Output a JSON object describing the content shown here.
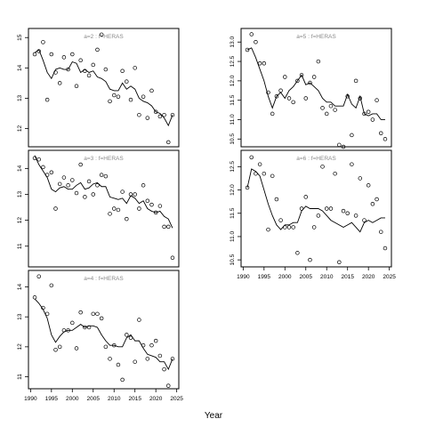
{
  "chart_data": {
    "type": "line",
    "xlabel": "Year",
    "panels": [
      {
        "label": "a=2  :  f=HERAS",
        "xlim": [
          1989.5,
          2025.5
        ],
        "ylim": [
          11.4,
          15.3
        ],
        "xticks": [],
        "yticks": [
          12,
          13,
          14,
          15
        ],
        "series": [
          {
            "kind": "points",
            "x": [
              1991,
              1992,
              1993,
              1994,
              1995,
              1996,
              1997,
              1998,
              1999,
              2000,
              2001,
              2002,
              2003,
              2004,
              2005,
              2006,
              2007,
              2008,
              2009,
              2010,
              2011,
              2012,
              2013,
              2014,
              2015,
              2016,
              2017,
              2018,
              2019,
              2020,
              2021,
              2022,
              2023,
              2024
            ],
            "y": [
              14.45,
              14.55,
              14.85,
              12.95,
              14.45,
              13.85,
              13.5,
              14.35,
              13.95,
              14.45,
              13.4,
              14.25,
              13.9,
              13.75,
              14.1,
              14.6,
              15.1,
              13.95,
              12.9,
              13.1,
              13.05,
              13.9,
              13.55,
              12.95,
              14.0,
              12.45,
              13.05,
              12.35,
              13.25,
              12.55,
              12.4,
              12.45,
              11.55,
              12.45
            ]
          },
          {
            "kind": "line",
            "x": [
              1991,
              1992,
              1993,
              1994,
              1995,
              1996,
              1997,
              1998,
              1999,
              2000,
              2001,
              2002,
              2003,
              2004,
              2005,
              2006,
              2007,
              2008,
              2009,
              2010,
              2011,
              2012,
              2013,
              2014,
              2015,
              2016,
              2017,
              2018,
              2019,
              2020,
              2021,
              2022,
              2023,
              2024
            ],
            "y": [
              14.5,
              14.6,
              14.25,
              13.85,
              13.65,
              13.95,
              14.0,
              13.95,
              13.95,
              14.2,
              14.15,
              13.85,
              13.95,
              13.85,
              13.9,
              13.7,
              13.65,
              13.55,
              13.3,
              13.25,
              13.25,
              13.5,
              13.3,
              13.4,
              13.3,
              13.0,
              12.9,
              12.85,
              12.75,
              12.55,
              12.5,
              12.35,
              12.1,
              12.45
            ]
          }
        ]
      },
      {
        "label": "a=3  :  f=HERAS",
        "xlim": [
          1989.5,
          2025.5
        ],
        "ylim": [
          10.2,
          14.7
        ],
        "xticks": [],
        "yticks": [
          11,
          12,
          13,
          14
        ],
        "series": [
          {
            "kind": "points",
            "x": [
              1991,
              1992,
              1993,
              1994,
              1995,
              1996,
              1997,
              1998,
              1999,
              2000,
              2001,
              2002,
              2003,
              2004,
              2005,
              2006,
              2007,
              2008,
              2009,
              2010,
              2011,
              2012,
              2013,
              2014,
              2015,
              2016,
              2017,
              2018,
              2019,
              2020,
              2021,
              2022,
              2023,
              2024
            ],
            "y": [
              14.4,
              14.35,
              14.05,
              13.75,
              13.85,
              12.45,
              13.4,
              13.65,
              13.35,
              13.55,
              13.05,
              14.15,
              12.9,
              13.5,
              13.0,
              13.35,
              13.75,
              13.7,
              12.25,
              12.45,
              12.4,
              13.1,
              12.05,
              13.0,
              13.0,
              12.45,
              13.35,
              12.75,
              12.6,
              12.3,
              12.55,
              11.75,
              11.75,
              10.55
            ]
          },
          {
            "kind": "line",
            "x": [
              1991,
              1992,
              1993,
              1994,
              1995,
              1996,
              1997,
              1998,
              1999,
              2000,
              2001,
              2002,
              2003,
              2004,
              2005,
              2006,
              2007,
              2008,
              2009,
              2010,
              2011,
              2012,
              2013,
              2014,
              2015,
              2016,
              2017,
              2018,
              2019,
              2020,
              2021,
              2022,
              2023,
              2024
            ],
            "y": [
              14.5,
              14.15,
              13.9,
              13.65,
              13.2,
              13.1,
              13.25,
              13.3,
              13.2,
              13.2,
              13.35,
              13.45,
              13.2,
              13.25,
              13.4,
              13.45,
              13.3,
              13.3,
              12.9,
              12.85,
              12.8,
              12.85,
              12.65,
              12.95,
              12.85,
              12.65,
              12.75,
              12.45,
              12.35,
              12.3,
              12.35,
              12.15,
              12.05,
              11.7
            ]
          }
        ]
      },
      {
        "label": "a=4  :  f=HERAS",
        "xlim": [
          1989.5,
          2025.5
        ],
        "ylim": [
          10.6,
          14.55
        ],
        "xticks": [
          1990,
          1995,
          2000,
          2005,
          2010,
          2015,
          2020,
          2025
        ],
        "yticks": [
          11,
          12,
          13,
          14
        ],
        "series": [
          {
            "kind": "points",
            "x": [
              1991,
              1992,
              1993,
              1994,
              1995,
              1996,
              1997,
              1998,
              1999,
              2000,
              2001,
              2002,
              2003,
              2004,
              2005,
              2006,
              2007,
              2008,
              2009,
              2010,
              2011,
              2012,
              2013,
              2014,
              2015,
              2016,
              2017,
              2018,
              2019,
              2020,
              2021,
              2022,
              2023,
              2024
            ],
            "y": [
              13.65,
              14.35,
              13.3,
              13.1,
              14.05,
              11.9,
              12.0,
              12.55,
              12.55,
              12.8,
              11.95,
              13.15,
              12.65,
              12.65,
              13.1,
              13.1,
              12.95,
              12.0,
              11.6,
              12.05,
              11.4,
              10.9,
              12.4,
              12.3,
              11.5,
              12.9,
              12.05,
              11.6,
              12.05,
              12.2,
              11.7,
              11.25,
              10.7,
              11.6
            ]
          },
          {
            "kind": "line",
            "x": [
              1991,
              1992,
              1993,
              1994,
              1995,
              1996,
              1997,
              1998,
              1999,
              2000,
              2001,
              2002,
              2003,
              2004,
              2005,
              2006,
              2007,
              2008,
              2009,
              2010,
              2011,
              2012,
              2013,
              2014,
              2015,
              2016,
              2017,
              2018,
              2019,
              2020,
              2021,
              2022,
              2023,
              2024
            ],
            "y": [
              13.6,
              13.45,
              13.25,
              12.95,
              12.4,
              12.15,
              12.35,
              12.5,
              12.55,
              12.55,
              12.65,
              12.75,
              12.65,
              12.7,
              12.7,
              12.65,
              12.4,
              12.2,
              12.05,
              12.05,
              12.0,
              12.0,
              12.3,
              12.4,
              12.2,
              12.2,
              11.95,
              11.75,
              11.7,
              11.65,
              11.5,
              11.5,
              11.25,
              11.6
            ]
          }
        ]
      },
      {
        "label": "a=5  :  f=HERAS",
        "xlim": [
          1989.5,
          2025.5
        ],
        "ylim": [
          10.3,
          13.35
        ],
        "xticks": [],
        "yticks": [
          10.5,
          11.0,
          11.5,
          12.0,
          12.5,
          13.0
        ],
        "series": [
          {
            "kind": "points",
            "x": [
              1991,
              1992,
              1993,
              1994,
              1995,
              1996,
              1997,
              1998,
              1999,
              2000,
              2001,
              2002,
              2003,
              2004,
              2005,
              2006,
              2007,
              2008,
              2009,
              2010,
              2011,
              2012,
              2013,
              2014,
              2015,
              2016,
              2017,
              2018,
              2019,
              2020,
              2021,
              2022,
              2023,
              2024
            ],
            "y": [
              12.8,
              13.2,
              13.0,
              12.45,
              12.45,
              11.7,
              11.15,
              11.6,
              11.75,
              12.1,
              11.55,
              11.45,
              12.0,
              12.15,
              11.55,
              11.95,
              12.1,
              12.5,
              11.3,
              11.15,
              11.35,
              11.25,
              10.35,
              10.3,
              11.6,
              10.6,
              12.0,
              11.55,
              11.15,
              11.2,
              11.0,
              11.5,
              10.65,
              10.5
            ]
          },
          {
            "kind": "line",
            "x": [
              1991,
              1992,
              1993,
              1994,
              1995,
              1996,
              1997,
              1998,
              1999,
              2000,
              2001,
              2002,
              2003,
              2004,
              2005,
              2006,
              2007,
              2008,
              2009,
              2010,
              2011,
              2012,
              2013,
              2014,
              2015,
              2016,
              2017,
              2018,
              2019,
              2020,
              2021,
              2022,
              2023,
              2024
            ],
            "y": [
              12.8,
              12.85,
              12.6,
              12.3,
              12.0,
              11.6,
              11.3,
              11.6,
              11.7,
              11.55,
              11.75,
              11.85,
              12.0,
              12.15,
              11.9,
              11.95,
              11.85,
              11.75,
              11.55,
              11.45,
              11.45,
              11.35,
              11.35,
              11.35,
              11.65,
              11.4,
              11.3,
              11.6,
              11.15,
              11.1,
              11.15,
              11.15,
              11.0,
              11.0
            ]
          }
        ]
      },
      {
        "label": "a=6  :  f=HERAS",
        "xlim": [
          1989.5,
          2025.5
        ],
        "ylim": [
          10.35,
          12.85
        ],
        "xticks": [
          1990,
          1995,
          2000,
          2005,
          2010,
          2015,
          2020,
          2025
        ],
        "yticks": [
          10.5,
          11.0,
          11.5,
          12.0,
          12.5
        ],
        "series": [
          {
            "kind": "points",
            "x": [
              1991,
              1992,
              1993,
              1994,
              1995,
              1996,
              1997,
              1998,
              1999,
              2000,
              2001,
              2002,
              2003,
              2004,
              2005,
              2006,
              2007,
              2008,
              2009,
              2010,
              2011,
              2012,
              2013,
              2014,
              2015,
              2016,
              2017,
              2018,
              2019,
              2020,
              2021,
              2022,
              2023,
              2024
            ],
            "y": [
              12.05,
              12.7,
              12.35,
              12.55,
              12.35,
              11.15,
              12.3,
              11.8,
              11.35,
              11.2,
              11.2,
              11.2,
              10.65,
              11.6,
              11.85,
              10.5,
              11.2,
              11.45,
              12.5,
              11.6,
              11.6,
              12.35,
              10.45,
              11.55,
              11.5,
              12.55,
              11.45,
              12.25,
              11.35,
              12.1,
              11.7,
              11.8,
              11.1,
              10.75
            ]
          },
          {
            "kind": "line",
            "x": [
              1991,
              1992,
              1993,
              1994,
              1995,
              1996,
              1997,
              1998,
              1999,
              2000,
              2001,
              2002,
              2003,
              2004,
              2005,
              2006,
              2007,
              2008,
              2009,
              2010,
              2011,
              2012,
              2013,
              2014,
              2015,
              2016,
              2017,
              2018,
              2019,
              2020,
              2021,
              2022,
              2023,
              2024
            ],
            "y": [
              12.05,
              12.45,
              12.4,
              12.3,
              12.0,
              11.7,
              11.45,
              11.25,
              11.15,
              11.25,
              11.25,
              11.3,
              11.3,
              11.55,
              11.65,
              11.6,
              11.6,
              11.6,
              11.55,
              11.45,
              11.35,
              11.3,
              11.25,
              11.2,
              11.25,
              11.3,
              11.2,
              11.1,
              11.3,
              11.35,
              11.3,
              11.35,
              11.4,
              11.4
            ]
          }
        ]
      }
    ]
  }
}
